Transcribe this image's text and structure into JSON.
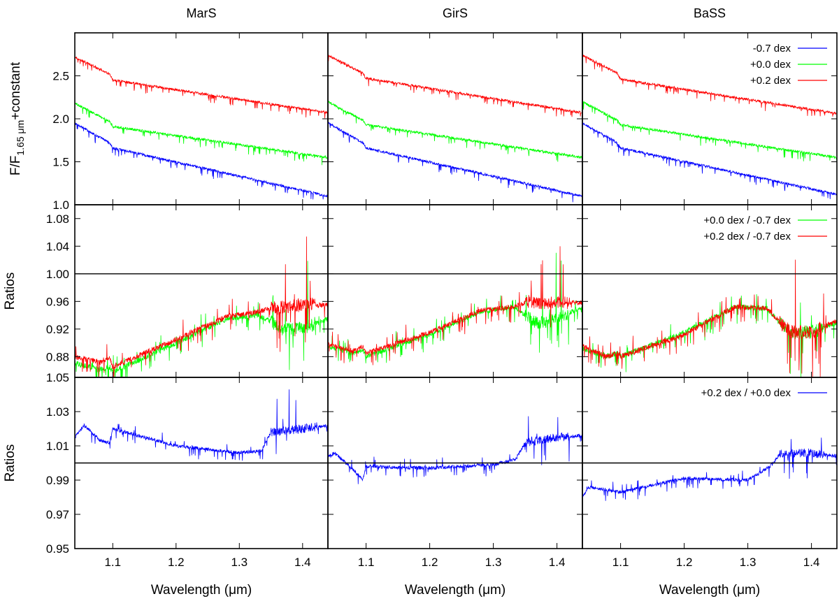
{
  "chart_data": [
    {
      "type": "line",
      "row": 0,
      "ylabel_main": "F/F",
      "ylabel_sub": "1.65 μm",
      "ylabel_tail": "+constant",
      "xlim": [
        1.04,
        1.44
      ],
      "ylim": [
        1.0,
        3.0
      ],
      "yticks": [
        "1.0",
        "1.5",
        "2.0",
        "2.5"
      ],
      "ytick_values": [
        1.0,
        1.5,
        2.0,
        2.5
      ],
      "legend_position": "top-right",
      "panels": [
        {
          "title": "MarS",
          "series": [
            {
              "name": "-0.7 dex",
              "color": "#0000ff",
              "x": [
                1.04,
                1.095,
                1.1,
                1.44
              ],
              "y": [
                1.95,
                1.72,
                1.66,
                1.1
              ],
              "noise": 0.03
            },
            {
              "name": "+0.0 dex",
              "color": "#00ff00",
              "x": [
                1.04,
                1.095,
                1.1,
                1.44
              ],
              "y": [
                2.18,
                1.97,
                1.91,
                1.55
              ],
              "noise": 0.03
            },
            {
              "name": "+0.2 dex",
              "color": "#ff0000",
              "x": [
                1.04,
                1.095,
                1.1,
                1.44
              ],
              "y": [
                2.72,
                2.52,
                2.45,
                2.07
              ],
              "noise": 0.03
            }
          ]
        },
        {
          "title": "GirS",
          "series": [
            {
              "name": "-0.7 dex",
              "color": "#0000ff",
              "x": [
                1.04,
                1.095,
                1.1,
                1.44
              ],
              "y": [
                1.95,
                1.72,
                1.66,
                1.1
              ],
              "noise": 0.03
            },
            {
              "name": "+0.0 dex",
              "color": "#00ff00",
              "x": [
                1.04,
                1.095,
                1.1,
                1.44
              ],
              "y": [
                2.2,
                1.98,
                1.93,
                1.55
              ],
              "noise": 0.03
            },
            {
              "name": "+0.2 dex",
              "color": "#ff0000",
              "x": [
                1.04,
                1.095,
                1.1,
                1.44
              ],
              "y": [
                2.74,
                2.53,
                2.47,
                2.07
              ],
              "noise": 0.03
            }
          ]
        },
        {
          "title": "BaSS",
          "series": [
            {
              "name": "-0.7 dex",
              "color": "#0000ff",
              "x": [
                1.04,
                1.095,
                1.1,
                1.44
              ],
              "y": [
                1.95,
                1.72,
                1.66,
                1.12
              ],
              "noise": 0.03
            },
            {
              "name": "+0.0 dex",
              "color": "#00ff00",
              "x": [
                1.04,
                1.095,
                1.1,
                1.44
              ],
              "y": [
                2.2,
                1.98,
                1.93,
                1.55
              ],
              "noise": 0.03
            },
            {
              "name": "+0.2 dex",
              "color": "#ff0000",
              "x": [
                1.04,
                1.095,
                1.1,
                1.44
              ],
              "y": [
                2.74,
                2.53,
                2.46,
                2.06
              ],
              "noise": 0.03
            }
          ]
        }
      ]
    },
    {
      "type": "line",
      "row": 1,
      "ylabel": "Ratios",
      "xlim": [
        1.04,
        1.44
      ],
      "ylim": [
        0.85,
        1.1
      ],
      "yticks": [
        "0.88",
        "0.92",
        "0.96",
        "1.00",
        "1.04",
        "1.08"
      ],
      "ytick_values": [
        0.88,
        0.92,
        0.96,
        1.0,
        1.04,
        1.08
      ],
      "hline": 1.0,
      "legend_position": "top-right",
      "panels": [
        {
          "title": "MarS",
          "series": [
            {
              "name": "+0.0 dex / -0.7 dex",
              "color": "#00ff00",
              "x": [
                1.04,
                1.08,
                1.095,
                1.1,
                1.2,
                1.28,
                1.33,
                1.35,
                1.37,
                1.4,
                1.44
              ],
              "y": [
                0.87,
                0.862,
                0.865,
                0.858,
                0.9,
                0.935,
                0.94,
                0.93,
                0.92,
                0.92,
                0.935
              ],
              "noise": 0.008
            },
            {
              "name": "+0.2 dex / -0.7 dex",
              "color": "#ff0000",
              "x": [
                1.04,
                1.08,
                1.095,
                1.1,
                1.2,
                1.28,
                1.33,
                1.35,
                1.37,
                1.4,
                1.44
              ],
              "y": [
                0.88,
                0.872,
                0.88,
                0.865,
                0.905,
                0.938,
                0.945,
                0.95,
                0.952,
                0.955,
                0.955
              ],
              "noise": 0.008
            }
          ]
        },
        {
          "title": "GirS",
          "series": [
            {
              "name": "+0.0 dex / -0.7 dex",
              "color": "#00ff00",
              "x": [
                1.04,
                1.08,
                1.095,
                1.1,
                1.2,
                1.28,
                1.33,
                1.35,
                1.37,
                1.4,
                1.44
              ],
              "y": [
                0.895,
                0.885,
                0.89,
                0.88,
                0.912,
                0.945,
                0.952,
                0.94,
                0.928,
                0.935,
                0.952
              ],
              "noise": 0.007
            },
            {
              "name": "+0.2 dex / -0.7 dex",
              "color": "#ff0000",
              "x": [
                1.04,
                1.08,
                1.095,
                1.1,
                1.2,
                1.28,
                1.33,
                1.35,
                1.37,
                1.4,
                1.44
              ],
              "y": [
                0.898,
                0.888,
                0.895,
                0.885,
                0.915,
                0.947,
                0.952,
                0.958,
                0.958,
                0.958,
                0.958
              ],
              "noise": 0.007
            }
          ]
        },
        {
          "title": "BaSS",
          "series": [
            {
              "name": "+0.0 dex / -0.7 dex",
              "color": "#00ff00",
              "x": [
                1.04,
                1.08,
                1.095,
                1.1,
                1.2,
                1.28,
                1.33,
                1.35,
                1.37,
                1.4,
                1.44
              ],
              "y": [
                0.892,
                0.88,
                0.885,
                0.88,
                0.915,
                0.952,
                0.95,
                0.93,
                0.915,
                0.915,
                0.93
              ],
              "noise": 0.008
            },
            {
              "name": "+0.2 dex / -0.7 dex",
              "color": "#ff0000",
              "x": [
                1.04,
                1.08,
                1.095,
                1.1,
                1.2,
                1.28,
                1.33,
                1.35,
                1.37,
                1.4,
                1.44
              ],
              "y": [
                0.895,
                0.88,
                0.885,
                0.88,
                0.912,
                0.952,
                0.95,
                0.93,
                0.915,
                0.915,
                0.932
              ],
              "noise": 0.008
            }
          ]
        }
      ]
    },
    {
      "type": "line",
      "row": 2,
      "ylabel": "Ratios",
      "xlabel": "Wavelength (μm)",
      "xlim": [
        1.04,
        1.44
      ],
      "ylim": [
        0.95,
        1.05
      ],
      "xticks": [
        "1.1",
        "1.2",
        "1.3",
        "1.4"
      ],
      "xtick_values": [
        1.1,
        1.2,
        1.3,
        1.4
      ],
      "yticks": [
        "0.95",
        "0.97",
        "0.99",
        "1.01",
        "1.03",
        "1.05"
      ],
      "ytick_values": [
        0.95,
        0.97,
        0.99,
        1.01,
        1.03,
        1.05
      ],
      "hline": 1.0,
      "legend_position": "top-right",
      "panels": [
        {
          "title": "MarS",
          "series": [
            {
              "name": "+0.2 dex / +0.0 dex",
              "color": "#0000ff",
              "x": [
                1.04,
                1.055,
                1.08,
                1.095,
                1.1,
                1.2,
                1.3,
                1.335,
                1.35,
                1.4,
                1.44
              ],
              "y": [
                1.015,
                1.022,
                1.013,
                1.012,
                1.02,
                1.01,
                1.006,
                1.007,
                1.018,
                1.02,
                1.022
              ],
              "noise": 0.002
            }
          ]
        },
        {
          "title": "GirS",
          "series": [
            {
              "name": "+0.2 dex / +0.0 dex",
              "color": "#0000ff",
              "x": [
                1.04,
                1.05,
                1.08,
                1.095,
                1.1,
                1.2,
                1.3,
                1.335,
                1.35,
                1.4,
                1.44
              ],
              "y": [
                1.003,
                1.006,
                0.996,
                0.99,
                0.998,
                0.997,
                0.999,
                1.002,
                1.012,
                1.015,
                1.016
              ],
              "noise": 0.002
            }
          ]
        },
        {
          "title": "BaSS",
          "series": [
            {
              "name": "+0.2 dex / +0.0 dex",
              "color": "#0000ff",
              "x": [
                1.04,
                1.05,
                1.1,
                1.2,
                1.3,
                1.335,
                1.35,
                1.4,
                1.44
              ],
              "y": [
                0.98,
                0.986,
                0.983,
                0.991,
                0.99,
                0.998,
                1.005,
                1.006,
                1.004
              ],
              "noise": 0.002
            }
          ]
        }
      ]
    }
  ]
}
